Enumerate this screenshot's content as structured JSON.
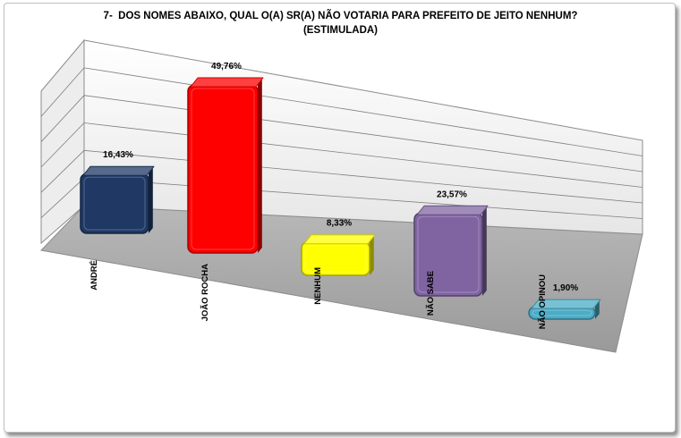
{
  "chart_data": {
    "type": "bar",
    "title": "7-  DOS NOMES ABAIXO, QUAL O(A) SR(A) NÃO VOTARIA PARA PREFEITO DE JEITO NENHUM?",
    "subtitle": "(ESTIMULADA)",
    "categories": [
      "ANDRÉ",
      "JOÃO ROCHA",
      "NENHUM",
      "NÃO SABE",
      "NÃO OPINOU"
    ],
    "values": [
      16.43,
      49.76,
      8.33,
      23.57,
      1.9
    ],
    "value_labels": [
      "16,43%",
      "49,76%",
      "8,33%",
      "23,57%",
      "1,90%"
    ],
    "ylim": [
      0,
      60
    ],
    "grid": true,
    "colors": [
      "#1f3864",
      "#ff0000",
      "#ffff00",
      "#8064a2",
      "#4bacc6"
    ]
  }
}
